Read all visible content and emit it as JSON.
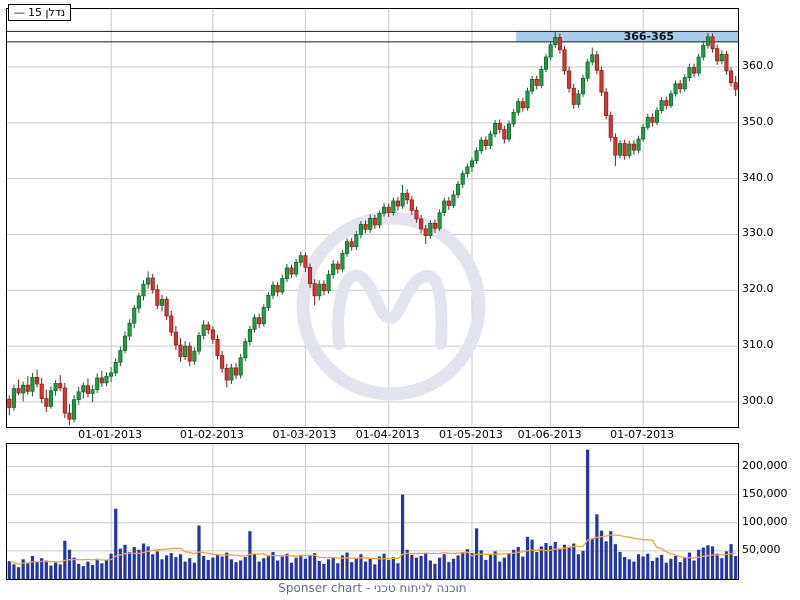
{
  "legend": {
    "line_symbol": "—",
    "label": "נדלן 15"
  },
  "caption": "Sponser chart - תוכנה לניתוח טכני",
  "colors": {
    "up": "#1f9a45",
    "up_border": "#0c6328",
    "down": "#d63631",
    "down_border": "#8c1a16",
    "volume_bar": "#2434ad",
    "volume_ma": "#eda73c",
    "band_fill": "#a8cdec",
    "band_line": "#1a1a1a",
    "grid": "#c9c9c9",
    "watermark": "#e4e4f1",
    "caption_color": "#5f6d92"
  },
  "chart_data": [
    {
      "type": "candlestick",
      "name": "נדלן 15",
      "y_axis_side": "right",
      "y_range": [
        295.5,
        370.4
      ],
      "y_ticks": [
        {
          "value": 360,
          "label": "360.0"
        },
        {
          "value": 350,
          "label": "350.0"
        },
        {
          "value": 340,
          "label": "340.0"
        },
        {
          "value": 330,
          "label": "330.0"
        },
        {
          "value": 320,
          "label": "320.0"
        },
        {
          "value": 310,
          "label": "310.0"
        },
        {
          "value": 300,
          "label": "300.0"
        }
      ],
      "x_ticks": [
        {
          "index": 22,
          "label": "01-01-2013"
        },
        {
          "index": 44,
          "label": "01-02-2013"
        },
        {
          "index": 64,
          "label": "01-03-2013"
        },
        {
          "index": 82,
          "label": "01-04-2013"
        },
        {
          "index": 100,
          "label": "01-05-2013"
        },
        {
          "index": 117,
          "label": "01-06-2013"
        },
        {
          "index": 137,
          "label": "01-07-2013"
        }
      ],
      "resistance_band": {
        "label": "366-365",
        "price_high": 366.4,
        "price_low": 364.5,
        "start_index": 110
      },
      "columns": [
        "open",
        "high",
        "low",
        "close",
        "volume"
      ],
      "candles": [
        [
          300.5,
          301.2,
          297.6,
          299.0,
          32000
        ],
        [
          299.0,
          303.1,
          298.4,
          302.4,
          26000
        ],
        [
          302.4,
          304.0,
          301.2,
          301.6,
          21000
        ],
        [
          301.6,
          303.6,
          300.1,
          303.0,
          35000
        ],
        [
          303.0,
          304.6,
          301.3,
          301.9,
          28000
        ],
        [
          301.9,
          305.2,
          301.0,
          304.4,
          41000
        ],
        [
          304.4,
          305.8,
          302.6,
          303.2,
          30000
        ],
        [
          303.2,
          304.3,
          299.8,
          300.6,
          37000
        ],
        [
          300.6,
          302.2,
          298.2,
          299.2,
          33000
        ],
        [
          299.2,
          302.8,
          298.8,
          302.0,
          24000
        ],
        [
          302.0,
          303.9,
          301.1,
          303.3,
          29000
        ],
        [
          303.3,
          304.8,
          301.9,
          302.5,
          26000
        ],
        [
          302.5,
          303.4,
          297.1,
          298.0,
          68000
        ],
        [
          298.0,
          299.6,
          295.8,
          296.9,
          52000
        ],
        [
          296.9,
          301.2,
          296.3,
          300.4,
          38000
        ],
        [
          300.4,
          302.7,
          299.5,
          301.8,
          27000
        ],
        [
          301.8,
          303.5,
          300.6,
          302.9,
          23000
        ],
        [
          302.9,
          304.2,
          300.8,
          301.5,
          31000
        ],
        [
          301.5,
          303.0,
          299.9,
          302.2,
          25000
        ],
        [
          302.2,
          305.1,
          301.6,
          304.3,
          36000
        ],
        [
          304.3,
          305.6,
          302.7,
          303.4,
          28000
        ],
        [
          303.4,
          305.3,
          302.8,
          304.6,
          33000
        ],
        [
          304.6,
          306.2,
          303.5,
          305.2,
          45000
        ],
        [
          305.2,
          307.8,
          304.6,
          307.1,
          125000
        ],
        [
          307.1,
          309.9,
          306.4,
          309.2,
          54000
        ],
        [
          309.2,
          312.6,
          308.7,
          311.8,
          61000
        ],
        [
          311.8,
          314.8,
          311.0,
          314.1,
          48000
        ],
        [
          314.1,
          317.4,
          313.2,
          316.8,
          57000
        ],
        [
          316.8,
          319.6,
          315.9,
          319.0,
          52000
        ],
        [
          319.0,
          321.8,
          318.2,
          321.1,
          63000
        ],
        [
          321.1,
          323.4,
          320.3,
          322.2,
          58000
        ],
        [
          322.2,
          322.9,
          319.4,
          320.1,
          44000
        ],
        [
          320.1,
          321.0,
          316.6,
          317.3,
          49000
        ],
        [
          317.3,
          319.2,
          316.2,
          318.4,
          35000
        ],
        [
          318.4,
          318.9,
          314.7,
          315.4,
          42000
        ],
        [
          315.4,
          316.3,
          311.8,
          312.5,
          46000
        ],
        [
          312.5,
          313.6,
          309.3,
          310.2,
          39000
        ],
        [
          310.2,
          311.4,
          307.2,
          308.1,
          44000
        ],
        [
          308.1,
          310.9,
          307.5,
          310.0,
          31000
        ],
        [
          310.0,
          310.7,
          306.4,
          307.3,
          37000
        ],
        [
          307.3,
          309.8,
          306.6,
          309.1,
          29000
        ],
        [
          309.1,
          312.5,
          308.5,
          311.9,
          95000
        ],
        [
          311.9,
          314.6,
          311.2,
          313.8,
          41000
        ],
        [
          313.8,
          314.4,
          312.1,
          312.9,
          34000
        ],
        [
          312.9,
          313.5,
          310.4,
          311.2,
          38000
        ],
        [
          311.2,
          312.0,
          307.6,
          308.3,
          43000
        ],
        [
          308.3,
          309.1,
          305.2,
          306.0,
          40000
        ],
        [
          306.0,
          306.8,
          302.6,
          303.9,
          47000
        ],
        [
          303.9,
          306.8,
          303.2,
          306.1,
          35000
        ],
        [
          306.1,
          306.9,
          304.1,
          304.8,
          30000
        ],
        [
          304.8,
          308.6,
          304.2,
          307.9,
          33000
        ],
        [
          307.9,
          311.4,
          307.3,
          310.8,
          39000
        ],
        [
          310.8,
          313.6,
          310.1,
          313.0,
          85000
        ],
        [
          313.0,
          315.7,
          312.4,
          315.1,
          44000
        ],
        [
          315.1,
          315.8,
          313.2,
          314.0,
          31000
        ],
        [
          314.0,
          317.5,
          313.5,
          316.9,
          37000
        ],
        [
          316.9,
          319.7,
          316.3,
          319.1,
          42000
        ],
        [
          319.1,
          321.6,
          318.4,
          320.9,
          48000
        ],
        [
          320.9,
          321.5,
          318.9,
          319.7,
          33000
        ],
        [
          319.7,
          322.8,
          319.2,
          322.1,
          40000
        ],
        [
          322.1,
          324.7,
          321.5,
          324.0,
          45000
        ],
        [
          324.0,
          324.6,
          322.2,
          322.9,
          29000
        ],
        [
          322.9,
          325.6,
          322.4,
          325.0,
          38000
        ],
        [
          325.0,
          326.9,
          324.3,
          326.2,
          43000
        ],
        [
          326.2,
          326.8,
          323.3,
          324.1,
          36000
        ],
        [
          324.1,
          324.8,
          320.4,
          321.2,
          41000
        ],
        [
          321.2,
          322.0,
          317.3,
          319.0,
          46000
        ],
        [
          319.0,
          321.8,
          318.2,
          321.1,
          32000
        ],
        [
          321.1,
          321.8,
          319.1,
          319.9,
          27000
        ],
        [
          319.9,
          323.6,
          319.4,
          322.8,
          35000
        ],
        [
          322.8,
          325.4,
          322.1,
          324.7,
          39000
        ],
        [
          324.7,
          325.3,
          323.0,
          323.8,
          28000
        ],
        [
          323.8,
          327.2,
          323.2,
          326.6,
          42000
        ],
        [
          326.6,
          329.3,
          326.0,
          328.7,
          47000
        ],
        [
          328.7,
          329.4,
          327.1,
          327.8,
          30000
        ],
        [
          327.8,
          330.6,
          327.2,
          330.0,
          38000
        ],
        [
          330.0,
          332.4,
          329.3,
          331.8,
          44000
        ],
        [
          331.8,
          332.5,
          330.2,
          330.9,
          31000
        ],
        [
          330.9,
          333.6,
          330.3,
          332.9,
          37000
        ],
        [
          332.9,
          333.5,
          331.0,
          331.7,
          26000
        ],
        [
          331.7,
          334.3,
          331.1,
          333.8,
          40000
        ],
        [
          333.8,
          335.6,
          333.2,
          334.9,
          45000
        ],
        [
          334.9,
          335.5,
          333.1,
          333.9,
          34000
        ],
        [
          333.9,
          336.6,
          333.4,
          336.0,
          39000
        ],
        [
          336.0,
          336.7,
          334.3,
          335.1,
          28000
        ],
        [
          335.1,
          338.9,
          334.6,
          337.4,
          150000
        ],
        [
          337.4,
          338.1,
          335.4,
          336.2,
          52000
        ],
        [
          336.2,
          336.9,
          333.5,
          334.3,
          43000
        ],
        [
          334.3,
          335.0,
          332.1,
          332.8,
          38000
        ],
        [
          332.8,
          333.5,
          330.2,
          331.0,
          41000
        ],
        [
          331.0,
          331.7,
          328.3,
          329.8,
          46000
        ],
        [
          329.8,
          332.6,
          329.2,
          332.0,
          33000
        ],
        [
          332.0,
          332.7,
          330.3,
          331.1,
          27000
        ],
        [
          331.1,
          334.5,
          330.6,
          333.9,
          38000
        ],
        [
          333.9,
          336.6,
          333.3,
          336.0,
          44000
        ],
        [
          336.0,
          336.7,
          334.4,
          335.2,
          30000
        ],
        [
          335.2,
          337.8,
          334.7,
          337.1,
          36000
        ],
        [
          337.1,
          339.6,
          336.5,
          339.0,
          42000
        ],
        [
          339.0,
          341.5,
          338.3,
          340.9,
          48000
        ],
        [
          340.9,
          342.7,
          340.2,
          342.1,
          53000
        ],
        [
          342.1,
          343.8,
          341.2,
          343.2,
          46000
        ],
        [
          343.2,
          345.6,
          342.6,
          345.0,
          90000
        ],
        [
          345.0,
          347.5,
          344.4,
          346.9,
          51000
        ],
        [
          346.9,
          347.6,
          345.1,
          345.9,
          34000
        ],
        [
          345.9,
          348.6,
          345.3,
          348.0,
          43000
        ],
        [
          348.0,
          350.5,
          347.4,
          349.9,
          49000
        ],
        [
          349.9,
          350.6,
          348.1,
          348.8,
          31000
        ],
        [
          348.8,
          349.5,
          346.3,
          347.1,
          38000
        ],
        [
          347.1,
          350.4,
          346.6,
          349.8,
          45000
        ],
        [
          349.8,
          352.5,
          349.2,
          351.9,
          52000
        ],
        [
          351.9,
          354.4,
          351.3,
          353.8,
          57000
        ],
        [
          353.8,
          354.5,
          352.0,
          352.7,
          40000
        ],
        [
          352.7,
          356.3,
          352.2,
          355.7,
          75000
        ],
        [
          355.7,
          358.4,
          355.1,
          357.8,
          70000
        ],
        [
          357.8,
          358.5,
          356.0,
          356.7,
          48000
        ],
        [
          356.7,
          360.2,
          356.2,
          359.6,
          58000
        ],
        [
          359.6,
          362.4,
          359.1,
          361.8,
          64000
        ],
        [
          361.8,
          364.6,
          361.2,
          364.0,
          59000
        ],
        [
          364.0,
          366.4,
          363.4,
          365.3,
          66000
        ],
        [
          365.3,
          366.0,
          362.4,
          363.1,
          54000
        ],
        [
          363.1,
          363.8,
          358.6,
          359.3,
          61000
        ],
        [
          359.3,
          360.1,
          355.4,
          356.2,
          57000
        ],
        [
          356.2,
          357.0,
          352.5,
          353.3,
          63000
        ],
        [
          353.3,
          355.9,
          352.7,
          355.2,
          44000
        ],
        [
          355.2,
          358.6,
          354.6,
          358.0,
          50000
        ],
        [
          358.0,
          361.5,
          357.4,
          360.9,
          230000
        ],
        [
          360.9,
          363.5,
          360.3,
          362.2,
          72000
        ],
        [
          362.2,
          362.9,
          358.7,
          359.4,
          115000
        ],
        [
          359.4,
          360.1,
          354.8,
          355.5,
          86000
        ],
        [
          355.5,
          356.2,
          350.6,
          351.3,
          67000
        ],
        [
          351.3,
          352.0,
          346.6,
          347.4,
          85000
        ],
        [
          347.4,
          348.1,
          342.3,
          344.2,
          62000
        ],
        [
          344.2,
          346.9,
          343.6,
          346.3,
          48000
        ],
        [
          346.3,
          347.0,
          343.4,
          344.1,
          39000
        ],
        [
          344.1,
          346.8,
          343.6,
          346.2,
          35000
        ],
        [
          346.2,
          346.9,
          344.3,
          345.1,
          31000
        ],
        [
          345.1,
          347.7,
          344.6,
          347.1,
          44000
        ],
        [
          347.1,
          349.8,
          346.6,
          349.2,
          40000
        ],
        [
          349.2,
          351.6,
          348.7,
          351.0,
          45000
        ],
        [
          351.0,
          351.7,
          349.3,
          350.1,
          32000
        ],
        [
          350.1,
          352.8,
          349.6,
          352.2,
          38000
        ],
        [
          352.2,
          354.6,
          351.7,
          354.0,
          43000
        ],
        [
          354.0,
          354.7,
          352.4,
          353.1,
          29000
        ],
        [
          353.1,
          355.8,
          352.6,
          355.2,
          36000
        ],
        [
          355.2,
          357.6,
          354.7,
          357.0,
          41000
        ],
        [
          357.0,
          357.7,
          355.3,
          356.1,
          30000
        ],
        [
          356.1,
          358.7,
          355.6,
          358.1,
          39000
        ],
        [
          358.1,
          360.6,
          357.5,
          359.9,
          47000
        ],
        [
          359.9,
          360.6,
          358.2,
          358.9,
          33000
        ],
        [
          358.9,
          362.4,
          358.4,
          361.8,
          52000
        ],
        [
          361.8,
          364.5,
          361.2,
          363.9,
          56000
        ],
        [
          363.9,
          366.1,
          363.3,
          365.4,
          60000
        ],
        [
          365.4,
          366.0,
          362.6,
          363.3,
          58000
        ],
        [
          363.3,
          364.0,
          360.4,
          361.1,
          45000
        ],
        [
          361.1,
          363.0,
          360.5,
          362.3,
          37000
        ],
        [
          362.3,
          362.9,
          358.6,
          359.3,
          49000
        ],
        [
          359.3,
          360.0,
          356.5,
          357.2,
          62000
        ],
        [
          357.2,
          358.4,
          354.8,
          356.0,
          41000
        ]
      ]
    },
    {
      "type": "bar",
      "name": "volume",
      "y_range": [
        0,
        240000
      ],
      "y_ticks": [
        {
          "value": 200000,
          "label": "200,000"
        },
        {
          "value": 150000,
          "label": "150,000"
        },
        {
          "value": 100000,
          "label": "100,000"
        },
        {
          "value": 50000,
          "label": "50,000"
        }
      ],
      "values_source": "candles column 4 (volume)",
      "ma_window": 15
    }
  ]
}
